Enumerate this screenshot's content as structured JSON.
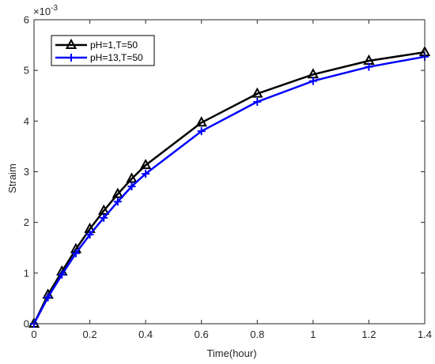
{
  "chart_data": {
    "type": "line",
    "xlabel": "Time(hour)",
    "ylabel": "Straim",
    "y_exponent_label": "×10",
    "y_exponent_power": "-3",
    "xlim": [
      0,
      1.4
    ],
    "ylim": [
      0,
      6
    ],
    "x_ticks": [
      0,
      0.2,
      0.4,
      0.6,
      0.8,
      1,
      1.2,
      1.4
    ],
    "y_ticks": [
      0,
      1,
      2,
      3,
      4,
      5,
      6
    ],
    "x_tick_labels": [
      "0",
      "0.2",
      "0.4",
      "0.6",
      "0.8",
      "1",
      "1.2",
      "1.4"
    ],
    "y_tick_labels": [
      "0",
      "1",
      "2",
      "3",
      "4",
      "5",
      "6"
    ],
    "grid": false,
    "legend_position": "top-left",
    "series": [
      {
        "name": "pH=1,T=50",
        "color": "#000000",
        "marker": "triangle",
        "x": [
          0,
          0.05,
          0.1,
          0.15,
          0.2,
          0.25,
          0.3,
          0.35,
          0.4,
          0.6,
          0.8,
          1.0,
          1.2,
          1.4
        ],
        "y": [
          0,
          0.57,
          1.03,
          1.47,
          1.87,
          2.23,
          2.56,
          2.86,
          3.13,
          3.97,
          4.54,
          4.92,
          5.19,
          5.36
        ]
      },
      {
        "name": "pH=13,T=50",
        "color": "#0000ff",
        "marker": "plus",
        "x": [
          0,
          0.05,
          0.1,
          0.15,
          0.2,
          0.25,
          0.3,
          0.35,
          0.4,
          0.6,
          0.8,
          1.0,
          1.2,
          1.4
        ],
        "y": [
          0,
          0.52,
          0.97,
          1.39,
          1.76,
          2.09,
          2.41,
          2.71,
          2.96,
          3.8,
          4.38,
          4.79,
          5.07,
          5.27
        ]
      }
    ]
  }
}
